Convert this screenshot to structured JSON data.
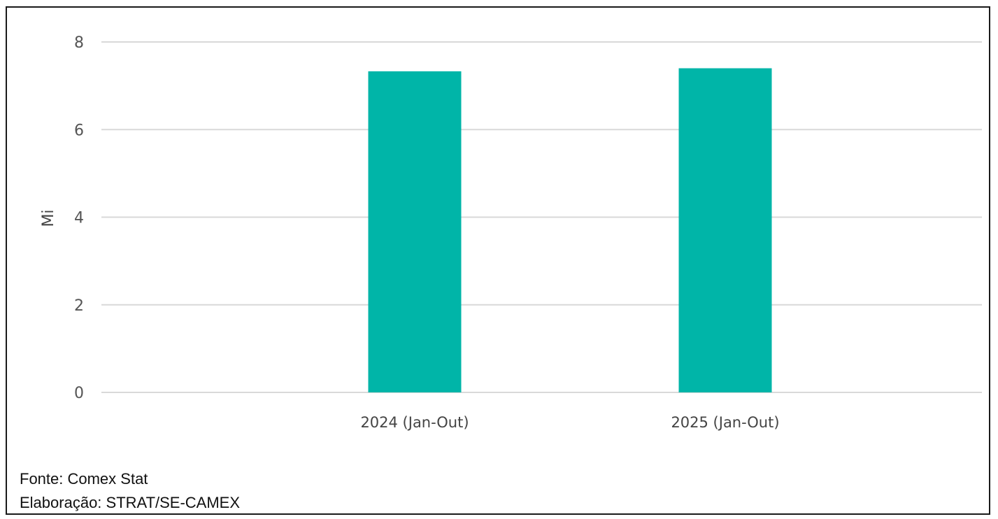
{
  "chart_data": {
    "type": "bar",
    "categories": [
      "2024 (Jan-Out)",
      "2025 (Jan-Out)"
    ],
    "values": [
      7.33,
      7.4
    ],
    "title": "",
    "xlabel": "",
    "ylabel": "Mi",
    "ylim": [
      0,
      8
    ],
    "yticks": [
      0,
      2,
      4,
      6,
      8
    ],
    "grid": true,
    "legend": "none",
    "bar_color": "#00b5a8",
    "grid_color": "#d9d9d9"
  },
  "notes": {
    "source": "Fonte: Comex Stat",
    "elaboration": "Elaboração: STRAT/SE-CAMEX"
  }
}
